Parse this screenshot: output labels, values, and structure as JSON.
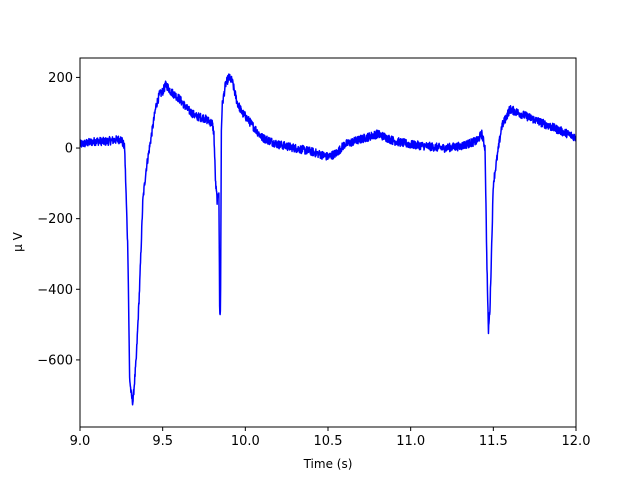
{
  "chart_data": {
    "type": "line",
    "title": "",
    "xlabel": "Time (s)",
    "ylabel": "μ V",
    "xlim": [
      9.0,
      12.0
    ],
    "ylim": [
      -790,
      255
    ],
    "grid": false,
    "x_ticks": [
      9.0,
      9.5,
      10.0,
      10.5,
      11.0,
      11.5,
      12.0
    ],
    "x_tick_labels": [
      "9.0",
      "9.5",
      "10.0",
      "10.5",
      "11.0",
      "11.5",
      "12.0"
    ],
    "y_ticks": [
      200,
      0,
      -200,
      -400,
      -600
    ],
    "y_tick_labels": [
      "200",
      "0",
      "−200",
      "−400",
      "−600"
    ],
    "series": [
      {
        "color": "#0000ff",
        "noise_amplitude": 12,
        "x": [
          9.0,
          9.05,
          9.1,
          9.15,
          9.2,
          9.25,
          9.27,
          9.29,
          9.3,
          9.31,
          9.32,
          9.34,
          9.36,
          9.38,
          9.4,
          9.42,
          9.44,
          9.46,
          9.48,
          9.5,
          9.52,
          9.55,
          9.6,
          9.65,
          9.7,
          9.75,
          9.8,
          9.81,
          9.82,
          9.83,
          9.84,
          9.845,
          9.85,
          9.855,
          9.86,
          9.88,
          9.9,
          9.92,
          9.95,
          9.98,
          10.0,
          10.05,
          10.1,
          10.2,
          10.3,
          10.4,
          10.5,
          10.55,
          10.6,
          10.7,
          10.8,
          10.9,
          11.0,
          11.1,
          11.2,
          11.3,
          11.4,
          11.43,
          11.45,
          11.46,
          11.47,
          11.48,
          11.5,
          11.55,
          11.6,
          11.7,
          11.8,
          11.9,
          12.0
        ],
        "y": [
          10,
          15,
          20,
          18,
          22,
          25,
          0,
          -300,
          -650,
          -700,
          -720,
          -600,
          -400,
          -150,
          -60,
          0,
          60,
          120,
          150,
          160,
          180,
          160,
          140,
          110,
          90,
          85,
          70,
          40,
          -100,
          -150,
          -120,
          -480,
          -450,
          50,
          120,
          180,
          200,
          190,
          130,
          100,
          90,
          60,
          30,
          10,
          0,
          -10,
          -25,
          -15,
          10,
          25,
          40,
          20,
          10,
          5,
          0,
          5,
          20,
          40,
          0,
          -300,
          -520,
          -450,
          -100,
          60,
          110,
          90,
          70,
          50,
          30
        ]
      }
    ]
  }
}
